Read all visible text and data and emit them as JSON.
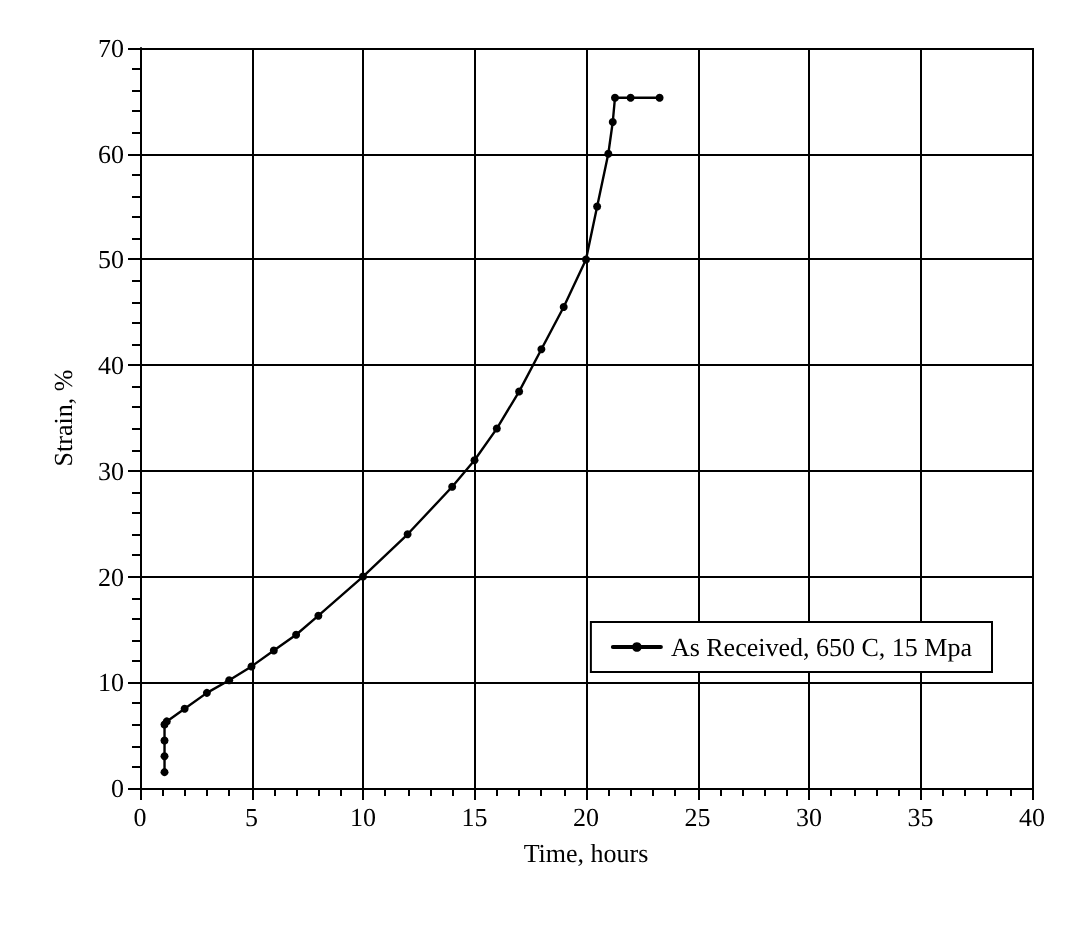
{
  "chart_data": {
    "type": "line",
    "xlabel": "Time, hours",
    "ylabel": "Strain, %",
    "x": [
      1.1,
      1.1,
      1.1,
      1.1,
      1.2,
      2,
      3,
      4,
      5,
      6,
      7,
      8,
      10,
      12,
      14,
      15,
      16,
      17,
      18,
      19,
      20,
      20.5,
      21,
      21.2,
      21.3,
      22,
      23.3
    ],
    "series": [
      {
        "name": "As Received, 650 C, 15 Mpa",
        "color": "#000000",
        "values": [
          1.5,
          3,
          4.5,
          6,
          6.3,
          7.5,
          9,
          10.2,
          11.5,
          13,
          14.5,
          16.3,
          20,
          24,
          28.5,
          31,
          34,
          37.5,
          41.5,
          45.5,
          50,
          55,
          60,
          63,
          65.3,
          65.3,
          65.3
        ]
      }
    ],
    "xlim": [
      0,
      40
    ],
    "xticks": [
      0,
      5,
      10,
      15,
      20,
      25,
      30,
      35,
      40
    ],
    "ylim": [
      0,
      70
    ],
    "yticks": [
      0,
      10,
      20,
      30,
      40,
      50,
      60,
      70
    ],
    "grid": true,
    "legend": "bottom right",
    "marker": "circle",
    "line_style": "solid"
  }
}
